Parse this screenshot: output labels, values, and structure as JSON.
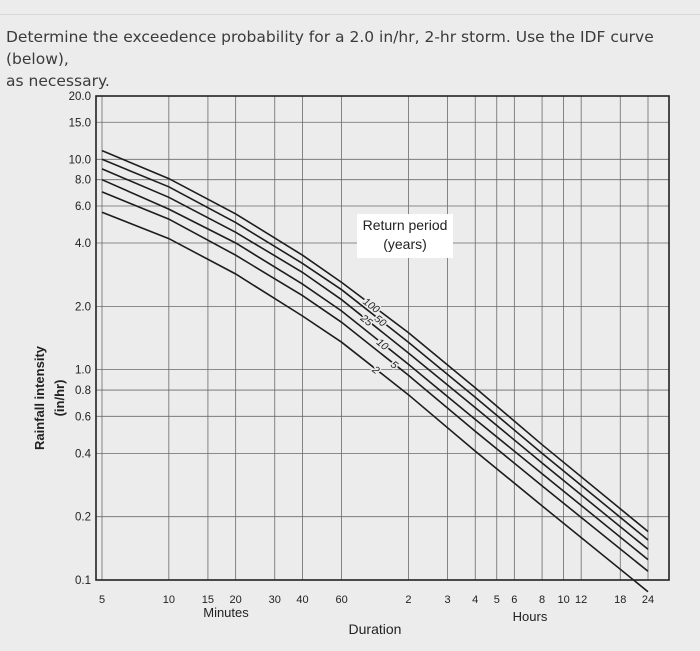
{
  "question": {
    "line1": "Determine the exceedence probability for a 2.0 in/hr, 2-hr storm. Use the IDF curve (below),",
    "line2": "as necessary."
  },
  "chart_data": {
    "type": "line",
    "title": "",
    "xlabel": "Duration",
    "ylabel": "Rainfall intensity",
    "ylabel_units": "(in/hr)",
    "x_scale": "log",
    "y_scale": "log",
    "xlim_minutes": [
      5,
      1440
    ],
    "ylim": [
      0.1,
      20.0
    ],
    "grid": true,
    "y_ticks": [
      {
        "value": 0.1,
        "label": "0.1"
      },
      {
        "value": 0.2,
        "label": "0.2"
      },
      {
        "value": 0.4,
        "label": "0.4"
      },
      {
        "value": 0.6,
        "label": "0.6"
      },
      {
        "value": 0.8,
        "label": "0.8"
      },
      {
        "value": 1.0,
        "label": "1.0"
      },
      {
        "value": 2.0,
        "label": "2.0"
      },
      {
        "value": 4.0,
        "label": "4.0"
      },
      {
        "value": 6.0,
        "label": "6.0"
      },
      {
        "value": 8.0,
        "label": "8.0"
      },
      {
        "value": 10.0,
        "label": "10.0"
      },
      {
        "value": 15.0,
        "label": "15.0"
      },
      {
        "value": 20.0,
        "label": "20.0"
      }
    ],
    "x_ticks": [
      {
        "value": 5,
        "label": "5"
      },
      {
        "value": 10,
        "label": "10"
      },
      {
        "value": 15,
        "label": "15"
      },
      {
        "value": 20,
        "label": "20"
      },
      {
        "value": 30,
        "label": "30"
      },
      {
        "value": 40,
        "label": "40"
      },
      {
        "value": 60,
        "label": "60"
      },
      {
        "value": 120,
        "label": "2"
      },
      {
        "value": 180,
        "label": "3"
      },
      {
        "value": 240,
        "label": "4"
      },
      {
        "value": 300,
        "label": "5"
      },
      {
        "value": 360,
        "label": "6"
      },
      {
        "value": 480,
        "label": "8"
      },
      {
        "value": 600,
        "label": "10"
      },
      {
        "value": 720,
        "label": "12"
      },
      {
        "value": 1080,
        "label": "18"
      },
      {
        "value": 1440,
        "label": "24"
      }
    ],
    "x_group_labels": {
      "minutes": "Minutes",
      "hours": "Hours"
    },
    "legend": {
      "title_line1": "Return period",
      "title_line2": "(years)"
    },
    "series": [
      {
        "name": "100",
        "points": [
          [
            5,
            11.0
          ],
          [
            10,
            8.1
          ],
          [
            20,
            5.5
          ],
          [
            40,
            3.5
          ],
          [
            60,
            2.6
          ],
          [
            120,
            1.5
          ],
          [
            240,
            0.82
          ],
          [
            480,
            0.44
          ],
          [
            1440,
            0.17
          ]
        ]
      },
      {
        "name": "50",
        "points": [
          [
            5,
            10.0
          ],
          [
            10,
            7.4
          ],
          [
            20,
            5.0
          ],
          [
            40,
            3.2
          ],
          [
            60,
            2.4
          ],
          [
            120,
            1.35
          ],
          [
            240,
            0.74
          ],
          [
            480,
            0.4
          ],
          [
            1440,
            0.155
          ]
        ]
      },
      {
        "name": "25",
        "points": [
          [
            5,
            9.0
          ],
          [
            10,
            6.6
          ],
          [
            20,
            4.5
          ],
          [
            40,
            2.9
          ],
          [
            60,
            2.15
          ],
          [
            120,
            1.2
          ],
          [
            240,
            0.66
          ],
          [
            480,
            0.36
          ],
          [
            1440,
            0.14
          ]
        ]
      },
      {
        "name": "10",
        "points": [
          [
            5,
            8.0
          ],
          [
            10,
            5.8
          ],
          [
            20,
            4.0
          ],
          [
            40,
            2.55
          ],
          [
            60,
            1.9
          ],
          [
            120,
            1.06
          ],
          [
            240,
            0.58
          ],
          [
            480,
            0.32
          ],
          [
            1440,
            0.125
          ]
        ]
      },
      {
        "name": "5",
        "points": [
          [
            5,
            7.0
          ],
          [
            10,
            5.2
          ],
          [
            20,
            3.5
          ],
          [
            40,
            2.25
          ],
          [
            60,
            1.68
          ],
          [
            120,
            0.94
          ],
          [
            240,
            0.51
          ],
          [
            480,
            0.28
          ],
          [
            1440,
            0.11
          ]
        ]
      },
      {
        "name": "2",
        "points": [
          [
            5,
            5.6
          ],
          [
            10,
            4.2
          ],
          [
            20,
            2.85
          ],
          [
            40,
            1.8
          ],
          [
            60,
            1.35
          ],
          [
            120,
            0.76
          ],
          [
            240,
            0.41
          ],
          [
            480,
            0.225
          ],
          [
            1440,
            0.088
          ]
        ]
      }
    ]
  }
}
